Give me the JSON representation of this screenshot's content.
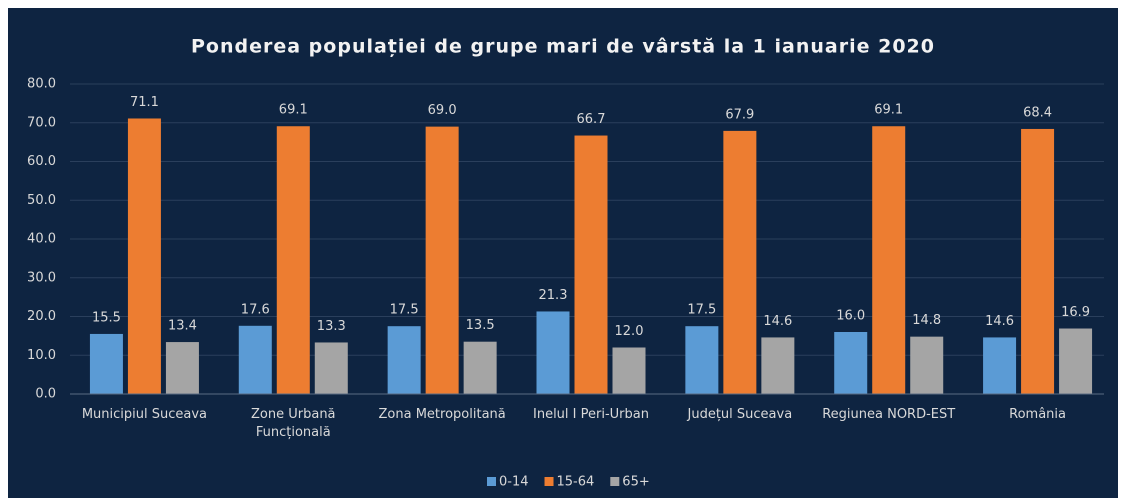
{
  "chart_data": {
    "type": "bar",
    "title": "Ponderea populației de grupe mari de vârstă la 1 ianuarie 2020",
    "categories": [
      "Municipiul Suceava",
      "Zone Urbană Funcțională",
      "Zona Metropolitană",
      "Inelul I Peri-Urban",
      "Județul Suceava",
      "Regiunea NORD-EST",
      "România"
    ],
    "series": [
      {
        "name": "0-14",
        "color": "#5b9bd5",
        "values": [
          15.5,
          17.6,
          17.5,
          21.3,
          17.5,
          16.0,
          14.6
        ],
        "value_labels": [
          "15.5",
          "17.6",
          "17.5",
          "21.3",
          "17.5",
          "16.0",
          "14.6"
        ]
      },
      {
        "name": "15-64",
        "color": "#ed7d31",
        "values": [
          71.1,
          69.1,
          69.0,
          66.7,
          67.9,
          69.1,
          68.4
        ],
        "value_labels": [
          "71.1",
          "69.1",
          "69.0",
          "66.7",
          "67.9",
          "69.1",
          "68.4"
        ]
      },
      {
        "name": "65+",
        "color": "#a5a5a5",
        "values": [
          13.4,
          13.3,
          13.5,
          12.0,
          14.6,
          14.8,
          16.9
        ],
        "value_labels": [
          "13.4",
          "13.3",
          "13.5",
          "12.0",
          "14.6",
          "14.8",
          "16.9"
        ]
      }
    ],
    "ylim": [
      0,
      80
    ],
    "yticks": [
      {
        "value": 0,
        "label": "0.0"
      },
      {
        "value": 10,
        "label": "10.0"
      },
      {
        "value": 20,
        "label": "20.0"
      },
      {
        "value": 30,
        "label": "30.0"
      },
      {
        "value": 40,
        "label": "40.0"
      },
      {
        "value": 50,
        "label": "50.0"
      },
      {
        "value": 60,
        "label": "60.0"
      },
      {
        "value": 70,
        "label": "70.0"
      },
      {
        "value": 80,
        "label": "80.0"
      }
    ],
    "grid": true,
    "legend": "bottom"
  }
}
